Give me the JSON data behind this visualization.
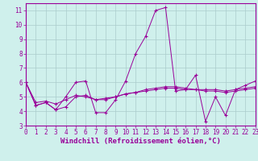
{
  "xlabel": "Windchill (Refroidissement éolien,°C)",
  "background_color": "#cff0ec",
  "grid_color": "#aacccc",
  "line_color": "#990099",
  "series": [
    [
      6.0,
      4.4,
      4.6,
      4.1,
      5.0,
      6.0,
      6.1,
      3.9,
      3.9,
      4.8,
      6.1,
      8.0,
      9.2,
      11.0,
      11.2,
      5.4,
      5.5,
      6.5,
      3.3,
      5.0,
      3.7,
      5.5,
      5.8,
      6.1
    ],
    [
      6.0,
      4.6,
      4.7,
      4.5,
      4.8,
      5.1,
      5.0,
      4.8,
      4.8,
      5.0,
      5.2,
      5.3,
      5.4,
      5.5,
      5.6,
      5.6,
      5.5,
      5.5,
      5.4,
      5.4,
      5.3,
      5.4,
      5.5,
      5.6
    ],
    [
      6.0,
      4.4,
      4.6,
      4.1,
      4.3,
      5.0,
      5.1,
      4.8,
      4.9,
      5.0,
      5.2,
      5.3,
      5.5,
      5.6,
      5.7,
      5.7,
      5.6,
      5.5,
      5.5,
      5.5,
      5.4,
      5.5,
      5.6,
      5.7
    ]
  ],
  "xlim": [
    0,
    23
  ],
  "ylim": [
    3,
    11.5
  ],
  "yticks": [
    3,
    4,
    5,
    6,
    7,
    8,
    9,
    10,
    11
  ],
  "xticks": [
    0,
    1,
    2,
    3,
    4,
    5,
    6,
    7,
    8,
    9,
    10,
    11,
    12,
    13,
    14,
    15,
    16,
    17,
    18,
    19,
    20,
    21,
    22,
    23
  ],
  "xtick_labels": [
    "0",
    "1",
    "2",
    "3",
    "4",
    "5",
    "6",
    "7",
    "8",
    "9",
    "10",
    "11",
    "12",
    "13",
    "14",
    "15",
    "16",
    "17",
    "18",
    "19",
    "20",
    "21",
    "22",
    "23"
  ],
  "tick_color": "#990099",
  "tick_fontsize": 5.5,
  "label_fontsize": 6.5,
  "marker": "+"
}
